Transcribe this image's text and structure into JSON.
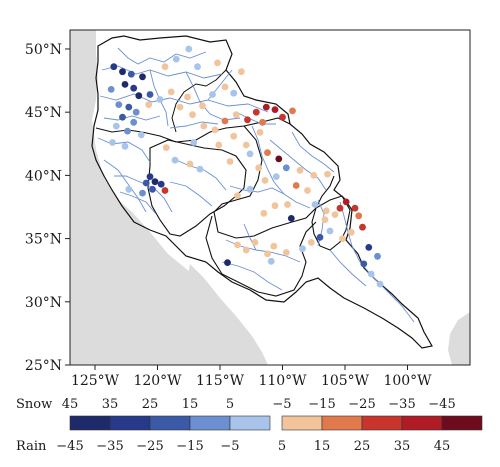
{
  "map": {
    "lat_labels": [
      "50°N",
      "45°N",
      "40°N",
      "35°N",
      "30°N",
      "25°N"
    ],
    "lon_labels": [
      "125°W",
      "120°W",
      "115°W",
      "110°W",
      "105°W",
      "100°W"
    ],
    "extent": {
      "lon": [
        -127,
        -95
      ],
      "lat": [
        25,
        51.5
      ]
    },
    "colors": {
      "land": "#ffffff",
      "ocean_gray": "#dcdcdc",
      "border": "#111111",
      "river": "#6b8fd6"
    }
  },
  "legend": {
    "snow_label": "Snow",
    "rain_label": "Rain",
    "left": {
      "top_ticks": [
        "45",
        "35",
        "25",
        "15",
        "5"
      ],
      "bottom_ticks": [
        "−45",
        "−35",
        "−25",
        "−15",
        "−5"
      ],
      "colors": [
        "#1f2a6b",
        "#27398a",
        "#3a5aa8",
        "#6b8fd0",
        "#a8c4ea"
      ]
    },
    "right": {
      "top_ticks": [
        "−5",
        "−15",
        "−25",
        "−35",
        "−45"
      ],
      "bottom_ticks": [
        "5",
        "15",
        "25",
        "35",
        "45"
      ],
      "colors": [
        "#f2c49b",
        "#e07a4c",
        "#c7352c",
        "#b01c26",
        "#6e0c1e"
      ]
    }
  },
  "chart_data": {
    "type": "scatter",
    "title": "",
    "xlabel": "",
    "ylabel": "",
    "xlim": [
      -127,
      -95
    ],
    "ylim": [
      25,
      51.5
    ],
    "color_classes": {
      "blue5": "#1f2a6b",
      "blue4": "#27398a",
      "blue3": "#3a5aa8",
      "blue2": "#6b8fd0",
      "blue1": "#a8c4ea",
      "red1": "#f2c49b",
      "red2": "#e07a4c",
      "red3": "#c7352c",
      "red4": "#b01c26",
      "red5": "#6e0c1e"
    },
    "points": [
      {
        "lon": -123.5,
        "lat": 48.6,
        "c": "blue4"
      },
      {
        "lon": -122.8,
        "lat": 48.2,
        "c": "blue5"
      },
      {
        "lon": -122.1,
        "lat": 48.0,
        "c": "blue3"
      },
      {
        "lon": -121.2,
        "lat": 47.8,
        "c": "blue5"
      },
      {
        "lon": -122.6,
        "lat": 47.2,
        "c": "blue5"
      },
      {
        "lon": -121.9,
        "lat": 46.9,
        "c": "blue4"
      },
      {
        "lon": -123.7,
        "lat": 46.8,
        "c": "blue2"
      },
      {
        "lon": -121.5,
        "lat": 46.3,
        "c": "blue5"
      },
      {
        "lon": -120.6,
        "lat": 46.4,
        "c": "blue3"
      },
      {
        "lon": -123.1,
        "lat": 45.6,
        "c": "blue2"
      },
      {
        "lon": -122.3,
        "lat": 45.4,
        "c": "blue3"
      },
      {
        "lon": -121.7,
        "lat": 45.0,
        "c": "blue2"
      },
      {
        "lon": -122.8,
        "lat": 44.6,
        "c": "blue3"
      },
      {
        "lon": -121.9,
        "lat": 44.2,
        "c": "blue2"
      },
      {
        "lon": -123.3,
        "lat": 43.9,
        "c": "blue1"
      },
      {
        "lon": -122.4,
        "lat": 43.5,
        "c": "blue2"
      },
      {
        "lon": -121.3,
        "lat": 43.2,
        "c": "blue1"
      },
      {
        "lon": -123.6,
        "lat": 42.6,
        "c": "blue1"
      },
      {
        "lon": -122.6,
        "lat": 42.3,
        "c": "blue1"
      },
      {
        "lon": -120.7,
        "lat": 45.6,
        "c": "red1"
      },
      {
        "lon": -119.8,
        "lat": 46.0,
        "c": "blue1"
      },
      {
        "lon": -118.9,
        "lat": 46.6,
        "c": "red1"
      },
      {
        "lon": -117.6,
        "lat": 46.2,
        "c": "red1"
      },
      {
        "lon": -118.2,
        "lat": 45.4,
        "c": "red1"
      },
      {
        "lon": -117.2,
        "lat": 44.8,
        "c": "red1"
      },
      {
        "lon": -116.4,
        "lat": 45.5,
        "c": "red1"
      },
      {
        "lon": -115.6,
        "lat": 46.4,
        "c": "blue1"
      },
      {
        "lon": -114.6,
        "lat": 47.0,
        "c": "red1"
      },
      {
        "lon": -113.9,
        "lat": 46.5,
        "c": "blue1"
      },
      {
        "lon": -116.8,
        "lat": 48.6,
        "c": "blue1"
      },
      {
        "lon": -115.2,
        "lat": 48.9,
        "c": "red1"
      },
      {
        "lon": -113.3,
        "lat": 48.2,
        "c": "red1"
      },
      {
        "lon": -117.5,
        "lat": 50.0,
        "c": "blue1"
      },
      {
        "lon": -118.5,
        "lat": 49.2,
        "c": "blue1"
      },
      {
        "lon": -119.4,
        "lat": 48.6,
        "c": "red1"
      },
      {
        "lon": -116.3,
        "lat": 43.9,
        "c": "red1"
      },
      {
        "lon": -115.4,
        "lat": 43.6,
        "c": "red1"
      },
      {
        "lon": -114.6,
        "lat": 44.3,
        "c": "red2"
      },
      {
        "lon": -113.7,
        "lat": 44.8,
        "c": "red1"
      },
      {
        "lon": -112.8,
        "lat": 44.4,
        "c": "red3"
      },
      {
        "lon": -112.1,
        "lat": 45.0,
        "c": "red3"
      },
      {
        "lon": -111.3,
        "lat": 45.4,
        "c": "red4"
      },
      {
        "lon": -110.6,
        "lat": 45.2,
        "c": "red4"
      },
      {
        "lon": -110.0,
        "lat": 44.6,
        "c": "red3"
      },
      {
        "lon": -111.6,
        "lat": 44.2,
        "c": "red2"
      },
      {
        "lon": -109.2,
        "lat": 45.1,
        "c": "red2"
      },
      {
        "lon": -111.8,
        "lat": 43.4,
        "c": "red1"
      },
      {
        "lon": -113.9,
        "lat": 43.1,
        "c": "red1"
      },
      {
        "lon": -117.1,
        "lat": 42.6,
        "c": "blue1"
      },
      {
        "lon": -119.3,
        "lat": 42.2,
        "c": "red1"
      },
      {
        "lon": -115.1,
        "lat": 42.4,
        "c": "red1"
      },
      {
        "lon": -112.9,
        "lat": 42.4,
        "c": "red1"
      },
      {
        "lon": -111.2,
        "lat": 41.8,
        "c": "red2"
      },
      {
        "lon": -110.3,
        "lat": 41.3,
        "c": "red5"
      },
      {
        "lon": -109.7,
        "lat": 40.6,
        "c": "blue2"
      },
      {
        "lon": -110.5,
        "lat": 39.9,
        "c": "blue1"
      },
      {
        "lon": -111.9,
        "lat": 40.6,
        "c": "red1"
      },
      {
        "lon": -111.4,
        "lat": 39.6,
        "c": "red1"
      },
      {
        "lon": -112.6,
        "lat": 38.9,
        "c": "blue1"
      },
      {
        "lon": -113.6,
        "lat": 38.4,
        "c": "red1"
      },
      {
        "lon": -108.6,
        "lat": 40.4,
        "c": "red1"
      },
      {
        "lon": -107.5,
        "lat": 40.0,
        "c": "red1"
      },
      {
        "lon": -106.4,
        "lat": 40.1,
        "c": "red1"
      },
      {
        "lon": -108.9,
        "lat": 39.2,
        "c": "red2"
      },
      {
        "lon": -108.0,
        "lat": 38.8,
        "c": "red1"
      },
      {
        "lon": -109.6,
        "lat": 37.7,
        "c": "red1"
      },
      {
        "lon": -110.6,
        "lat": 37.6,
        "c": "red1"
      },
      {
        "lon": -111.5,
        "lat": 37.0,
        "c": "red1"
      },
      {
        "lon": -109.3,
        "lat": 36.6,
        "c": "blue5"
      },
      {
        "lon": -107.4,
        "lat": 37.7,
        "c": "blue1"
      },
      {
        "lon": -106.5,
        "lat": 37.2,
        "c": "red1"
      },
      {
        "lon": -105.4,
        "lat": 37.4,
        "c": "red3"
      },
      {
        "lon": -104.9,
        "lat": 37.9,
        "c": "red4"
      },
      {
        "lon": -104.2,
        "lat": 37.4,
        "c": "red3"
      },
      {
        "lon": -105.8,
        "lat": 36.9,
        "c": "red1"
      },
      {
        "lon": -106.6,
        "lat": 36.5,
        "c": "red1"
      },
      {
        "lon": -103.9,
        "lat": 36.8,
        "c": "red2"
      },
      {
        "lon": -103.6,
        "lat": 35.9,
        "c": "red3"
      },
      {
        "lon": -104.5,
        "lat": 35.5,
        "c": "red1"
      },
      {
        "lon": -105.2,
        "lat": 35.0,
        "c": "red1"
      },
      {
        "lon": -106.2,
        "lat": 35.6,
        "c": "blue1"
      },
      {
        "lon": -107.0,
        "lat": 35.1,
        "c": "blue3"
      },
      {
        "lon": -107.7,
        "lat": 34.7,
        "c": "red1"
      },
      {
        "lon": -108.4,
        "lat": 34.2,
        "c": "blue1"
      },
      {
        "lon": -109.7,
        "lat": 33.9,
        "c": "red1"
      },
      {
        "lon": -110.7,
        "lat": 34.4,
        "c": "red1"
      },
      {
        "lon": -111.2,
        "lat": 33.8,
        "c": "red1"
      },
      {
        "lon": -112.2,
        "lat": 34.7,
        "c": "red1"
      },
      {
        "lon": -112.9,
        "lat": 34.1,
        "c": "red1"
      },
      {
        "lon": -113.6,
        "lat": 34.5,
        "c": "red1"
      },
      {
        "lon": -110.9,
        "lat": 33.2,
        "c": "blue1"
      },
      {
        "lon": -114.4,
        "lat": 33.1,
        "c": "blue5"
      },
      {
        "lon": -103.1,
        "lat": 34.3,
        "c": "blue4"
      },
      {
        "lon": -102.4,
        "lat": 33.6,
        "c": "blue2"
      },
      {
        "lon": -103.5,
        "lat": 33.0,
        "c": "blue3"
      },
      {
        "lon": -102.9,
        "lat": 32.2,
        "c": "blue1"
      },
      {
        "lon": -102.2,
        "lat": 31.4,
        "c": "blue1"
      },
      {
        "lon": -120.6,
        "lat": 39.9,
        "c": "blue4"
      },
      {
        "lon": -120.2,
        "lat": 39.5,
        "c": "blue5"
      },
      {
        "lon": -119.7,
        "lat": 39.3,
        "c": "blue4"
      },
      {
        "lon": -120.9,
        "lat": 39.4,
        "c": "blue3"
      },
      {
        "lon": -120.4,
        "lat": 38.9,
        "c": "blue3"
      },
      {
        "lon": -119.4,
        "lat": 38.8,
        "c": "red3"
      },
      {
        "lon": -121.2,
        "lat": 38.6,
        "c": "blue2"
      },
      {
        "lon": -122.3,
        "lat": 38.9,
        "c": "blue1"
      },
      {
        "lon": -118.6,
        "lat": 41.2,
        "c": "blue1"
      },
      {
        "lon": -117.4,
        "lat": 40.9,
        "c": "red1"
      },
      {
        "lon": -116.6,
        "lat": 40.5,
        "c": "blue1"
      },
      {
        "lon": -114.2,
        "lat": 41.1,
        "c": "red1"
      },
      {
        "lon": -112.6,
        "lat": 41.7,
        "c": "blue1"
      }
    ]
  }
}
